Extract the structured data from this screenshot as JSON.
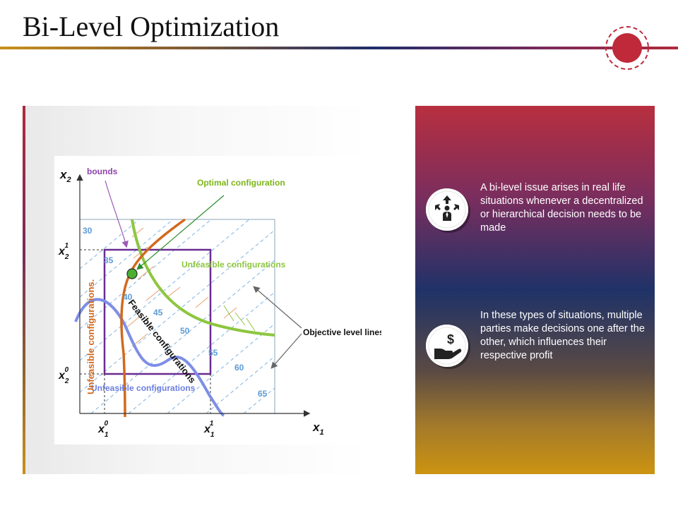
{
  "slide": {
    "title": "Bi-Level Optimization"
  },
  "diagram": {
    "labels": {
      "axis_x": "x",
      "axis_x_sub": "1",
      "axis_y": "x",
      "axis_y_sub": "2",
      "tick_x0_base": "x",
      "tick_x0_sub": "1",
      "tick_x0_sup": "0",
      "tick_x1_base": "x",
      "tick_x1_sub": "1",
      "tick_x1_sup": "1",
      "tick_y1_base": "x",
      "tick_y1_sub": "2",
      "tick_y1_sup": "1",
      "tick_y0_base": "x",
      "tick_y0_sub": "2",
      "tick_y0_sup": "0",
      "bounds": "bounds",
      "optimal_configuration": "Optimal configuration",
      "unfeasible_right": "Unfeasible configurations",
      "unfeasible_left": "Unfeasible configurations.",
      "unfeasible_bottom": "Unfeasible configurations",
      "feasible": "Feasible configurations",
      "objective_level_lines": "Objective level lines"
    },
    "level_values": [
      "30",
      "35",
      "40",
      "45",
      "50",
      "55",
      "60",
      "65"
    ],
    "colors": {
      "upper_bound_curve": "#8dc63f",
      "lower_bound_curve": "#7e8ee6",
      "constraint_curve": "#d2691e",
      "feasible_box": "#6a2c91",
      "level_lines": "#7fb3e0",
      "optimal_point": "#4caf32"
    }
  },
  "info": {
    "items": [
      {
        "icon": "decision-arrows-person-icon",
        "text": "A bi-level issue arises in real life situations whenever a decentralized or hierarchical decision needs to be made"
      },
      {
        "icon": "hand-holding-dollar-icon",
        "text": "In these types of situations, multiple parties make decisions one after the other, which influences their respective profit"
      }
    ],
    "colors": {
      "top": "#b82f3f",
      "middle": "#1f3268",
      "bottom": "#cc9411"
    }
  }
}
